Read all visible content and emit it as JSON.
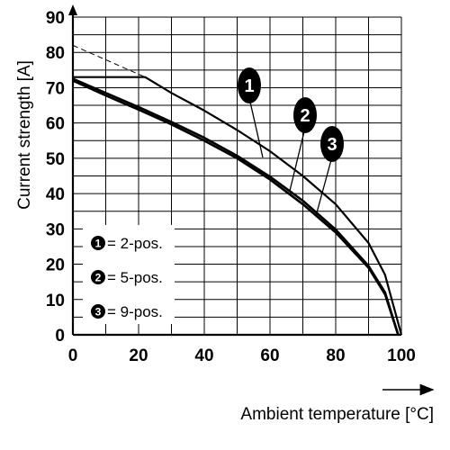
{
  "chart_data": {
    "type": "line",
    "xlabel": "Ambient temperature [°C]",
    "ylabel": "Current strength [A]",
    "xlim": [
      0,
      100
    ],
    "ylim": [
      0,
      90
    ],
    "x_ticks": [
      "0",
      "20",
      "40",
      "60",
      "80",
      "100"
    ],
    "y_ticks": [
      "0",
      "10",
      "20",
      "30",
      "40",
      "50",
      "60",
      "70",
      "80",
      "90"
    ],
    "grid": true,
    "legend": [
      {
        "num": "1",
        "label": "= 2-pos."
      },
      {
        "num": "2",
        "label": "= 5-pos."
      },
      {
        "num": "3",
        "label": "= 9-pos."
      }
    ],
    "series": [
      {
        "marker": "1",
        "x": [
          0,
          22,
          30,
          40,
          50,
          60,
          70,
          80,
          90,
          95,
          100
        ],
        "y": [
          73,
          73,
          68.5,
          63.5,
          58,
          52,
          45,
          37,
          26,
          17,
          0
        ]
      },
      {
        "marker": "2",
        "x": [
          0,
          10,
          20,
          30,
          40,
          50,
          60,
          70,
          80,
          90,
          95,
          99
        ],
        "y": [
          72.5,
          68.5,
          64.5,
          60.3,
          55.8,
          50.7,
          44.8,
          38,
          29.8,
          19.5,
          12,
          0
        ]
      },
      {
        "marker": "3",
        "x": [
          0,
          10,
          20,
          30,
          40,
          50,
          60,
          70,
          80,
          90,
          95,
          99
        ],
        "y": [
          72,
          67.8,
          63.8,
          59.6,
          55,
          50,
          44,
          37,
          29,
          19,
          11.5,
          0
        ]
      }
    ],
    "extrapolation": {
      "x": [
        0,
        22
      ],
      "y": [
        82,
        73
      ]
    }
  }
}
